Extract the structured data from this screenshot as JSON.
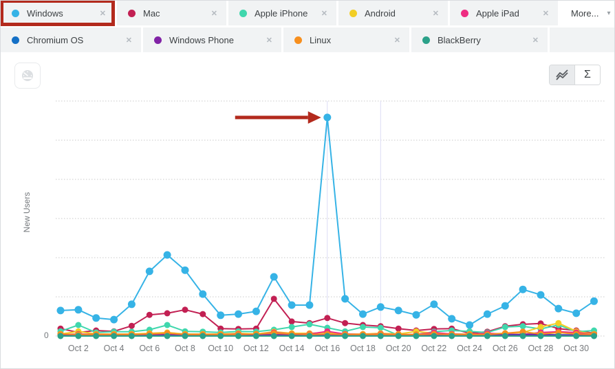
{
  "header": {
    "highlighted_chip": "Windows",
    "highlight_color": "#b32a1d",
    "close_glyph": "✕",
    "rows": [
      {
        "cells": [
          {
            "type": "chip",
            "label": "Windows",
            "color": "#36b3e6",
            "highlighted": true
          },
          {
            "type": "chip",
            "label": "Mac",
            "color": "#c22053"
          },
          {
            "type": "chip",
            "label": "Apple iPhone",
            "color": "#40d7ad"
          },
          {
            "type": "chip",
            "label": "Android",
            "color": "#f2ce25"
          },
          {
            "type": "chip",
            "label": "Apple iPad",
            "color": "#ee2d82"
          },
          {
            "type": "more",
            "label": "More...",
            "caret": "▾"
          }
        ]
      },
      {
        "cells": [
          {
            "type": "chip",
            "label": "Chromium OS",
            "color": "#1470c6"
          },
          {
            "type": "chip",
            "label": "Windows Phone",
            "color": "#8123a6"
          },
          {
            "type": "chip",
            "label": "Linux",
            "color": "#f78f1e"
          },
          {
            "type": "chip",
            "label": "BlackBerry",
            "color": "#2ba189"
          },
          {
            "type": "empty"
          }
        ]
      }
    ]
  },
  "toolbar": {
    "sigma_label": "Σ"
  },
  "chart_data": {
    "type": "line",
    "ylabel": "New Users",
    "y_zero_label": "0",
    "y_unit_note": "relative units, one dotted gridline = 10",
    "ylim": [
      0,
      60
    ],
    "grid": "dotted-horizontal",
    "x": [
      "Oct 1",
      "Oct 2",
      "Oct 3",
      "Oct 4",
      "Oct 5",
      "Oct 6",
      "Oct 7",
      "Oct 8",
      "Oct 9",
      "Oct 10",
      "Oct 11",
      "Oct 12",
      "Oct 13",
      "Oct 14",
      "Oct 15",
      "Oct 16",
      "Oct 17",
      "Oct 18",
      "Oct 19",
      "Oct 20",
      "Oct 21",
      "Oct 22",
      "Oct 23",
      "Oct 24",
      "Oct 25",
      "Oct 26",
      "Oct 27",
      "Oct 28",
      "Oct 29",
      "Oct 30",
      "Oct 31"
    ],
    "x_tick_labels": [
      "Oct 2",
      "Oct 4",
      "Oct 6",
      "Oct 8",
      "Oct 10",
      "Oct 12",
      "Oct 14",
      "Oct 16",
      "Oct 18",
      "Oct 20",
      "Oct 22",
      "Oct 24",
      "Oct 26",
      "Oct 28",
      "Oct 30"
    ],
    "x_tick_days": [
      2,
      4,
      6,
      8,
      10,
      12,
      14,
      16,
      18,
      20,
      22,
      24,
      26,
      28,
      30
    ],
    "vertical_marker_days": [
      16,
      19
    ],
    "vertical_marker_color": "#dcdcf5",
    "series": [
      {
        "name": "Windows",
        "color": "#36b3e6",
        "values": [
          6.5,
          6.7,
          4.6,
          4.2,
          8.1,
          16.5,
          20.7,
          16.8,
          10.7,
          5.3,
          5.6,
          6.3,
          15.1,
          7.9,
          7.9,
          55.8,
          9.5,
          5.6,
          7.4,
          6.5,
          5.4,
          8.1,
          4.4,
          2.8,
          5.6,
          7.7,
          11.9,
          10.5,
          7.0,
          5.8,
          8.9
        ]
      },
      {
        "name": "Mac",
        "color": "#c22053",
        "values": [
          1.9,
          0.9,
          1.4,
          1.2,
          2.6,
          5.4,
          5.8,
          6.7,
          5.6,
          1.9,
          1.8,
          1.9,
          9.5,
          3.7,
          3.3,
          4.6,
          3.3,
          2.8,
          2.5,
          1.9,
          1.4,
          1.8,
          1.9,
          0.7,
          1.1,
          2.5,
          3.0,
          3.2,
          1.9,
          1.4,
          0.7
        ]
      },
      {
        "name": "Apple iPhone",
        "color": "#40d7ad",
        "values": [
          1.2,
          2.8,
          0.9,
          1.1,
          1.1,
          1.6,
          2.8,
          1.2,
          1.1,
          0.9,
          1.2,
          1.1,
          1.6,
          2.3,
          3.0,
          2.1,
          1.2,
          2.3,
          2.1,
          0.2,
          0.4,
          1.1,
          1.4,
          1.2,
          0.9,
          2.3,
          2.5,
          1.8,
          2.8,
          1.1,
          1.4
        ]
      },
      {
        "name": "Android",
        "color": "#f2ce25",
        "values": [
          0.5,
          1.2,
          0.5,
          0.5,
          0.5,
          0.7,
          0.9,
          0.5,
          0.5,
          0.5,
          0.7,
          0.5,
          1.1,
          0.7,
          0.7,
          0.9,
          0.5,
          0.5,
          0.7,
          0.5,
          1.2,
          0.7,
          0.5,
          0.5,
          0.5,
          0.7,
          0.9,
          2.3,
          3.3,
          1.2,
          0.5
        ]
      },
      {
        "name": "Apple iPad",
        "color": "#ee2d82",
        "values": [
          0.4,
          0.5,
          0.4,
          0.4,
          0.4,
          0.5,
          0.7,
          0.4,
          0.4,
          0.4,
          0.5,
          0.4,
          0.9,
          0.5,
          0.5,
          1.2,
          0.5,
          0.4,
          0.5,
          0.4,
          0.4,
          0.9,
          0.5,
          0.4,
          0.7,
          0.5,
          0.4,
          0.9,
          1.1,
          0.9,
          0.4
        ]
      },
      {
        "name": "Chromium OS",
        "color": "#1470c6",
        "values": [
          0.3,
          0.4,
          0.3,
          0.3,
          0.3,
          0.4,
          0.4,
          0.3,
          0.3,
          0.3,
          0.3,
          0.3,
          0.4,
          0.3,
          0.3,
          0.5,
          0.3,
          0.3,
          0.3,
          0.3,
          0.3,
          0.4,
          0.3,
          0.3,
          0.3,
          0.3,
          0.4,
          0.4,
          0.3,
          0.3,
          0.3
        ]
      },
      {
        "name": "Windows Phone",
        "color": "#8123a6",
        "values": [
          0.2,
          0.2,
          0.2,
          0.2,
          0.2,
          0.3,
          0.3,
          0.2,
          0.2,
          0.2,
          0.2,
          0.2,
          0.3,
          0.2,
          0.2,
          0.3,
          0.2,
          0.2,
          0.2,
          0.2,
          0.2,
          0.2,
          0.2,
          0.2,
          0.2,
          0.2,
          0.3,
          0.3,
          0.2,
          0.2,
          0.2
        ]
      },
      {
        "name": "Linux",
        "color": "#f78f1e",
        "values": [
          0.5,
          0.4,
          0.4,
          0.4,
          0.4,
          0.5,
          0.7,
          0.4,
          0.4,
          0.4,
          0.4,
          0.5,
          0.7,
          0.5,
          0.4,
          0.5,
          0.4,
          0.4,
          0.4,
          0.4,
          0.4,
          0.5,
          0.4,
          0.4,
          0.4,
          0.7,
          1.1,
          0.5,
          0.9,
          0.5,
          0.4
        ]
      },
      {
        "name": "BlackBerry",
        "color": "#2ba189",
        "values": [
          0,
          0,
          0,
          0,
          0,
          0,
          0,
          0,
          0,
          0,
          0,
          0,
          0,
          0,
          0,
          0,
          0,
          0,
          0,
          0,
          0,
          0,
          0,
          0,
          0,
          0,
          0,
          0,
          0,
          0,
          0
        ]
      }
    ],
    "annotation": {
      "type": "arrow",
      "color": "#b32a1d",
      "points_to": "Windows spike on Oct 16"
    }
  }
}
